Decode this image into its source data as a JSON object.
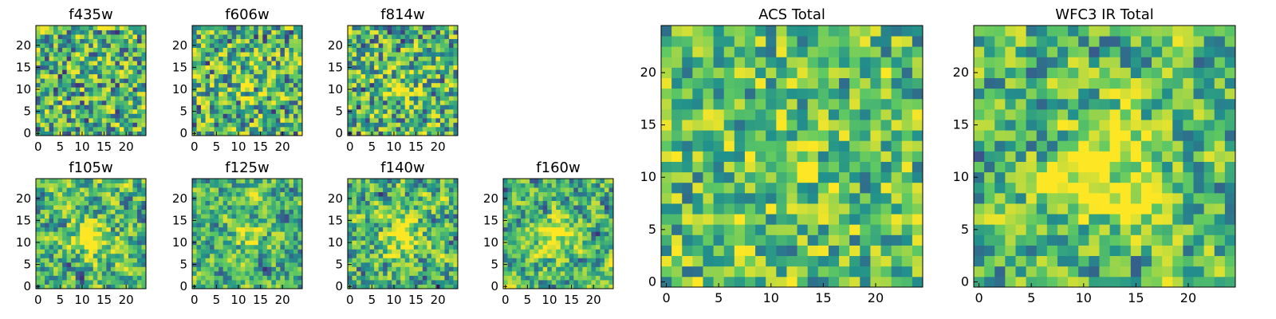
{
  "colormap": [
    "#440154",
    "#3b528b",
    "#21918c",
    "#5ec962",
    "#fde725"
  ],
  "chart_data": [
    {
      "type": "heatmap",
      "title": "f435w",
      "grid_size": 25,
      "x_ticks": [
        0,
        5,
        10,
        15,
        20
      ],
      "y_ticks": [
        0,
        5,
        10,
        15,
        20
      ],
      "seed": 11,
      "texture": "noise",
      "hotspot": 0.0
    },
    {
      "type": "heatmap",
      "title": "f606w",
      "grid_size": 25,
      "x_ticks": [
        0,
        5,
        10,
        15,
        20
      ],
      "y_ticks": [
        0,
        5,
        10,
        15,
        20
      ],
      "seed": 23,
      "texture": "noise",
      "hotspot": 0.15
    },
    {
      "type": "heatmap",
      "title": "f814w",
      "grid_size": 25,
      "x_ticks": [
        0,
        5,
        10,
        15,
        20
      ],
      "y_ticks": [
        0,
        5,
        10,
        15,
        20
      ],
      "seed": 37,
      "texture": "noise",
      "hotspot": 0.15
    },
    {
      "type": "heatmap",
      "title": "f105w",
      "grid_size": 25,
      "x_ticks": [
        0,
        5,
        10,
        15,
        20
      ],
      "y_ticks": [
        0,
        5,
        10,
        15,
        20
      ],
      "seed": 41,
      "texture": "smooth",
      "hotspot": 0.45
    },
    {
      "type": "heatmap",
      "title": "f125w",
      "grid_size": 25,
      "x_ticks": [
        0,
        5,
        10,
        15,
        20
      ],
      "y_ticks": [
        0,
        5,
        10,
        15,
        20
      ],
      "seed": 53,
      "texture": "smooth",
      "hotspot": 0.2
    },
    {
      "type": "heatmap",
      "title": "f140w",
      "grid_size": 25,
      "x_ticks": [
        0,
        5,
        10,
        15,
        20
      ],
      "y_ticks": [
        0,
        5,
        10,
        15,
        20
      ],
      "seed": 67,
      "texture": "smooth",
      "hotspot": 0.35
    },
    {
      "type": "heatmap",
      "title": "f160w",
      "grid_size": 25,
      "x_ticks": [
        0,
        5,
        10,
        15,
        20
      ],
      "y_ticks": [
        0,
        5,
        10,
        15,
        20
      ],
      "seed": 79,
      "texture": "smooth",
      "hotspot": 0.3
    },
    {
      "type": "heatmap",
      "title": "ACS Total",
      "grid_size": 25,
      "x_ticks": [
        0,
        5,
        10,
        15,
        20
      ],
      "y_ticks": [
        0,
        5,
        10,
        15,
        20
      ],
      "seed": 83,
      "texture": "noise-bright",
      "hotspot": 0.1
    },
    {
      "type": "heatmap",
      "title": "WFC3 IR Total",
      "grid_size": 25,
      "x_ticks": [
        0,
        5,
        10,
        15,
        20
      ],
      "y_ticks": [
        0,
        5,
        10,
        15,
        20
      ],
      "seed": 97,
      "texture": "smooth",
      "hotspot": 0.55
    }
  ]
}
